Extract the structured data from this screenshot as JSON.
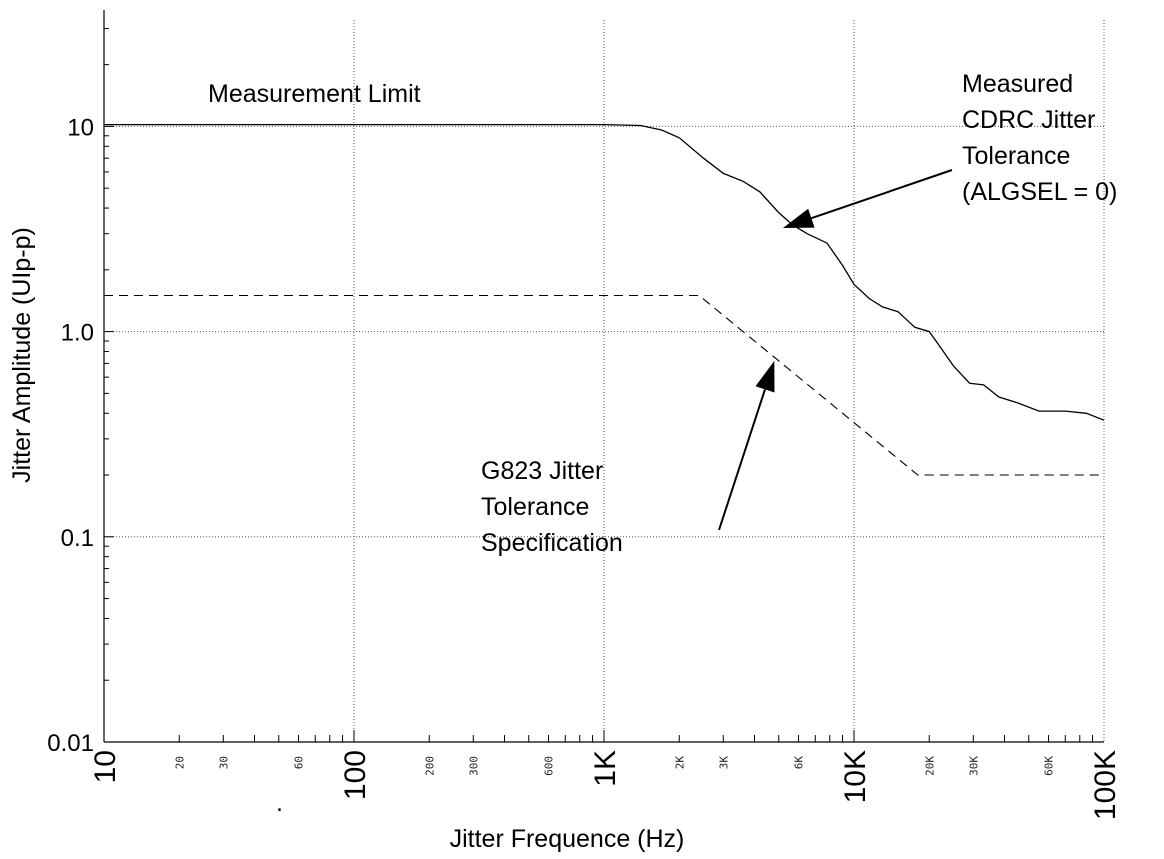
{
  "chart_data": {
    "type": "line",
    "xlabel": "Jitter Frequence (Hz)",
    "ylabel": "Jitter Amplitude (UIp-p)",
    "x_scale": "log",
    "y_scale": "log",
    "xlim": [
      10,
      100000
    ],
    "ylim": [
      0.01,
      33
    ],
    "grid": true,
    "x_major_ticks": [
      {
        "value": 10,
        "label": "10"
      },
      {
        "value": 100,
        "label": "100"
      },
      {
        "value": 1000,
        "label": "1K"
      },
      {
        "value": 10000,
        "label": "10K"
      },
      {
        "value": 100000,
        "label": "100K"
      }
    ],
    "x_minor_ticks": [
      {
        "value": 20,
        "label": "20"
      },
      {
        "value": 30,
        "label": "30"
      },
      {
        "value": 60,
        "label": "60"
      },
      {
        "value": 200,
        "label": "200"
      },
      {
        "value": 300,
        "label": "300"
      },
      {
        "value": 600,
        "label": "600"
      },
      {
        "value": 2000,
        "label": "2K"
      },
      {
        "value": 3000,
        "label": "3K"
      },
      {
        "value": 6000,
        "label": "6K"
      },
      {
        "value": 20000,
        "label": "20K"
      },
      {
        "value": 30000,
        "label": "30K"
      },
      {
        "value": 60000,
        "label": "60K"
      }
    ],
    "y_ticks": [
      {
        "value": 0.01,
        "label": "0.01"
      },
      {
        "value": 0.1,
        "label": "0.1"
      },
      {
        "value": 1,
        "label": "1.0"
      },
      {
        "value": 10,
        "label": "10"
      }
    ],
    "series": [
      {
        "style": "solid",
        "x": [
          10,
          1000,
          1400,
          1700,
          2000,
          2500,
          3000,
          3600,
          4200,
          5000,
          5700,
          6500,
          7800,
          9000,
          10000,
          11500,
          13000,
          15000,
          17500,
          20000,
          22000,
          25000,
          29000,
          33000,
          38000,
          45000,
          55000,
          70000,
          85000,
          100000
        ],
        "y": [
          10.2,
          10.2,
          10.1,
          9.6,
          8.8,
          7.0,
          5.9,
          5.4,
          4.8,
          3.8,
          3.3,
          3.0,
          2.7,
          2.1,
          1.7,
          1.45,
          1.32,
          1.25,
          1.05,
          1.0,
          0.85,
          0.68,
          0.56,
          0.55,
          0.48,
          0.45,
          0.41,
          0.41,
          0.4,
          0.37
        ]
      },
      {
        "style": "dashed",
        "x": [
          10,
          2400,
          18000,
          100000
        ],
        "y": [
          1.5,
          1.5,
          0.2,
          0.2
        ]
      }
    ],
    "annotations": [
      {
        "id": "measurement-limit",
        "lines": [
          "Measurement Limit"
        ]
      },
      {
        "id": "measured-cdrc",
        "lines": [
          "Measured",
          "CDRC Jitter",
          "Tolerance",
          "(ALGSEL = 0)"
        ],
        "arrow_to": {
          "x": 5200,
          "y": 3.2
        }
      },
      {
        "id": "g823",
        "lines": [
          "G823 Jitter",
          "Tolerance",
          "Specification"
        ],
        "arrow_to": {
          "x": 4800,
          "y": 0.72
        }
      }
    ],
    "stray_mark": "."
  }
}
